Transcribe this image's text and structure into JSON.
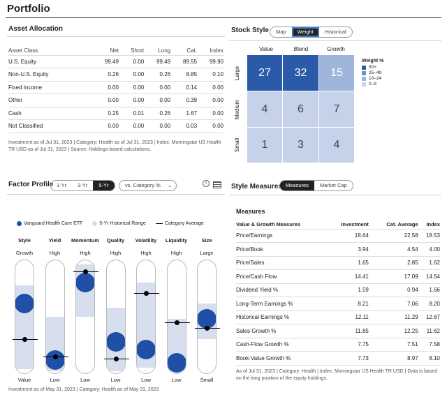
{
  "portfolio_title": "Portfolio",
  "asset_allocation": {
    "title": "Asset Allocation",
    "headers": [
      "Asset Class",
      "Net",
      "Short",
      "Long",
      "Cat.",
      "Index"
    ],
    "rows": [
      [
        "U.S. Equity",
        "99.49",
        "0.00",
        "99.49",
        "89.55",
        "99.90"
      ],
      [
        "Non-U.S. Equity",
        "0.26",
        "0.00",
        "0.26",
        "8.85",
        "0.10"
      ],
      [
        "Fixed Income",
        "0.00",
        "0.00",
        "0.00",
        "0.14",
        "0.00"
      ],
      [
        "Other",
        "0.00",
        "0.00",
        "0.00",
        "0.39",
        "0.00"
      ],
      [
        "Cash",
        "0.25",
        "0.01",
        "0.26",
        "1.67",
        "0.00"
      ],
      [
        "Not Classified",
        "0.00",
        "0.00",
        "0.00",
        "0.03",
        "0.00"
      ]
    ],
    "footnote": "Investment as of Jul 31, 2023 | Category: Health as of Jul 31, 2023 | Index: Morningstar US Health TR USD as of Jul 31, 2023 | Source: Holdings-based calculations."
  },
  "stock_style": {
    "title": "Stock Style",
    "tabs": [
      "Map",
      "Weight",
      "Historical"
    ],
    "active_tab": "Weight",
    "columns": [
      "Value",
      "Blend",
      "Growth"
    ],
    "rows": [
      "Large",
      "Medium",
      "Small"
    ],
    "cells": [
      [
        "27",
        "32",
        "15"
      ],
      [
        "4",
        "6",
        "7"
      ],
      [
        "1",
        "3",
        "4"
      ]
    ],
    "legend_title": "Weight %",
    "legend": [
      "50+",
      "25–49",
      "10–24",
      "0–9"
    ],
    "legend_colors": [
      "#2b5aa8",
      "#6f8fc8",
      "#9fb4da",
      "#c5d2ea"
    ]
  },
  "factor_profile": {
    "title": "Factor Profile",
    "periods": [
      "1-Yr",
      "3-Yr",
      "5-Yr"
    ],
    "active_period": "5-Yr",
    "dropdown": "vs. Category %",
    "legend": [
      "Vanguard Health Care ETF",
      "5-Yr Historical Range",
      "Category Average"
    ],
    "factors": [
      {
        "name": "Style",
        "top": "Growth",
        "bottom": "Value",
        "range": [
          0.04,
          0.78
        ],
        "fund": 0.62,
        "cat": 0.3
      },
      {
        "name": "Yield",
        "top": "High",
        "bottom": "Low",
        "range": [
          0.02,
          0.5
        ],
        "fund": 0.12,
        "cat": 0.15
      },
      {
        "name": "Momentum",
        "top": "High",
        "bottom": "Low",
        "range": [
          0.5,
          0.96
        ],
        "fund": 0.8,
        "cat": 0.9
      },
      {
        "name": "Quality",
        "top": "High",
        "bottom": "Low",
        "range": [
          0.02,
          0.58
        ],
        "fund": 0.28,
        "cat": 0.13
      },
      {
        "name": "Volatility",
        "top": "High",
        "bottom": "Low",
        "range": [
          0.05,
          0.8
        ],
        "fund": 0.21,
        "cat": 0.71
      },
      {
        "name": "Liquidity",
        "top": "High",
        "bottom": "Low",
        "range": [
          0.02,
          0.48
        ],
        "fund": 0.09,
        "cat": 0.45
      },
      {
        "name": "Size",
        "top": "Large",
        "bottom": "Small",
        "range": [
          0.3,
          0.62
        ],
        "fund": 0.48,
        "cat": 0.4
      }
    ],
    "footnote": "Investment as of May 31, 2023 | Category: Health as of May 31, 2023"
  },
  "style_measures": {
    "title": "Style Measures",
    "tabs": [
      "Measures",
      "Market Cap"
    ],
    "active_tab": "Measures",
    "subtitle": "Measures",
    "headers": [
      "Value & Growth Measures",
      "Investment",
      "Cat. Average",
      "Index"
    ],
    "rows": [
      [
        "Price/Earnings",
        "18.64",
        "22.58",
        "18.53"
      ],
      [
        "Price/Book",
        "3.94",
        "4.54",
        "4.00"
      ],
      [
        "Price/Sales",
        "1.65",
        "2.85",
        "1.62"
      ],
      [
        "Price/Cash Flow",
        "14.41",
        "17.09",
        "14.54"
      ],
      [
        "Dividend Yield %",
        "1.59",
        "0.94",
        "1.66"
      ],
      [
        "Long-Term Earnings %",
        "8.21",
        "7.06",
        "8.20"
      ],
      [
        "Historical Earnings %",
        "12.11",
        "11.29",
        "12.67"
      ],
      [
        "Sales Growth %",
        "11.85",
        "12.25",
        "11.62"
      ],
      [
        "Cash-Flow Growth %",
        "7.75",
        "7.51",
        "7.58"
      ],
      [
        "Book-Value Growth %",
        "7.73",
        "8.97",
        "8.10"
      ]
    ],
    "footnote": "As of Jul 31, 2023 | Category: Health | Index: Morningstar US Health TR USD | Data is based on the long position of the equity holdings."
  },
  "colors": {
    "fund": "#1f4fa6",
    "range": "#d7dfee",
    "cell_dark": "#2b5aa8",
    "cell_mid": "#6f8fc8",
    "cell_light": "#9fb4da",
    "cell_pale": "#c5d2ea"
  }
}
